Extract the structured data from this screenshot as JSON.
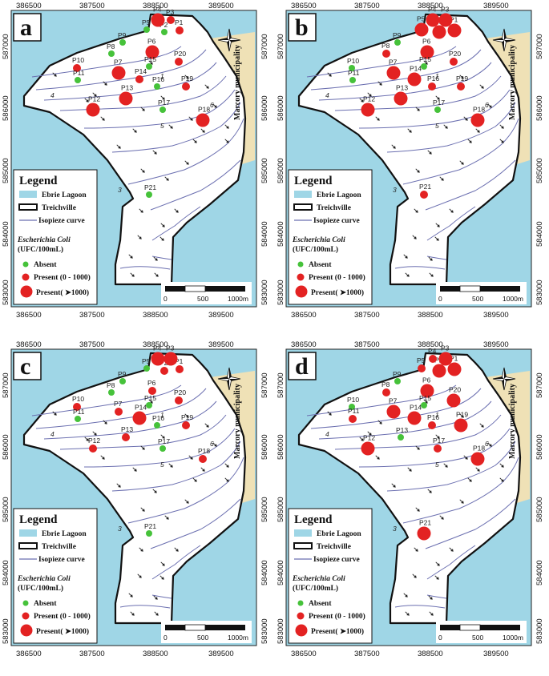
{
  "colors": {
    "lagoon": "#9fd6e6",
    "land": "#ffffff",
    "marcory": "#efe1b6",
    "isopieze": "#6b6fb0",
    "absent": "#46c23a",
    "present": "#e32222"
  },
  "axes": {
    "x_ticks": [
      "386500",
      "387500",
      "388500",
      "389500"
    ],
    "y_ticks": [
      "587000",
      "586000",
      "585000",
      "584000",
      "583000"
    ]
  },
  "legend": {
    "title": "Legend",
    "lagoon": "Ebrie Lagoon",
    "treichville": "Treichville",
    "isopieze": "Isopieze curve",
    "param": "Escherichia Coli",
    "unit": "(UFC/100mL)",
    "absent": "Absent",
    "present_low": "Present (0 - 1000)",
    "present_high": "Present( ➤1000)"
  },
  "scalebar": {
    "zero": "0",
    "mid": "500",
    "end": "1000m"
  },
  "map_labels": {
    "marcory": "Marcory municipality",
    "north_arrow_icon": "compass-rose-icon",
    "isopieze_values": [
      "4",
      "5",
      "6",
      "3",
      "1"
    ]
  },
  "stations": [
    "P1",
    "P2",
    "P3",
    "P4",
    "P5",
    "P6",
    "P7",
    "P8",
    "P9",
    "P10",
    "P11",
    "P12",
    "P13",
    "P14",
    "P15",
    "P16",
    "P17",
    "P18",
    "P19",
    "P20",
    "P21"
  ],
  "panels": [
    {
      "id": "a",
      "status": {
        "P1": "small",
        "P2": "absent",
        "P3": "small",
        "P4": "large",
        "P5": "absent",
        "P6": "large",
        "P7": "large",
        "P8": "absent",
        "P9": "absent",
        "P10": "small",
        "P11": "absent",
        "P12": "large",
        "P13": "large",
        "P14": "small",
        "P15": "absent",
        "P16": "absent",
        "P17": "absent",
        "P18": "large",
        "P19": "small",
        "P20": "small",
        "P21": "absent"
      }
    },
    {
      "id": "b",
      "status": {
        "P1": "large",
        "P2": "large",
        "P3": "large",
        "P4": "large",
        "P5": "large",
        "P6": "large",
        "P7": "large",
        "P8": "small",
        "P9": "absent",
        "P10": "absent",
        "P11": "absent",
        "P12": "large",
        "P13": "large",
        "P14": "large",
        "P15": "absent",
        "P16": "small",
        "P17": "absent",
        "P18": "large",
        "P19": "small",
        "P20": "small",
        "P21": "small"
      }
    },
    {
      "id": "c",
      "status": {
        "P1": "small",
        "P2": "small",
        "P3": "large",
        "P4": "large",
        "P5": "absent",
        "P6": "small",
        "P7": "small",
        "P8": "absent",
        "P9": "absent",
        "P10": "small",
        "P11": "absent",
        "P12": "small",
        "P13": "small",
        "P14": "large",
        "P15": "absent",
        "P16": "absent",
        "P17": "absent",
        "P18": "small",
        "P19": "small",
        "P20": "small",
        "P21": "absent"
      }
    },
    {
      "id": "d",
      "status": {
        "P1": "large",
        "P2": "large",
        "P3": "large",
        "P4": "small",
        "P5": "small",
        "P6": "large",
        "P7": "large",
        "P8": "small",
        "P9": "absent",
        "P10": "absent",
        "P11": "small",
        "P12": "large",
        "P13": "absent",
        "P14": "large",
        "P15": "absent",
        "P16": "small",
        "P17": "small",
        "P18": "large",
        "P19": "large",
        "P20": "large",
        "P21": "large"
      }
    }
  ]
}
